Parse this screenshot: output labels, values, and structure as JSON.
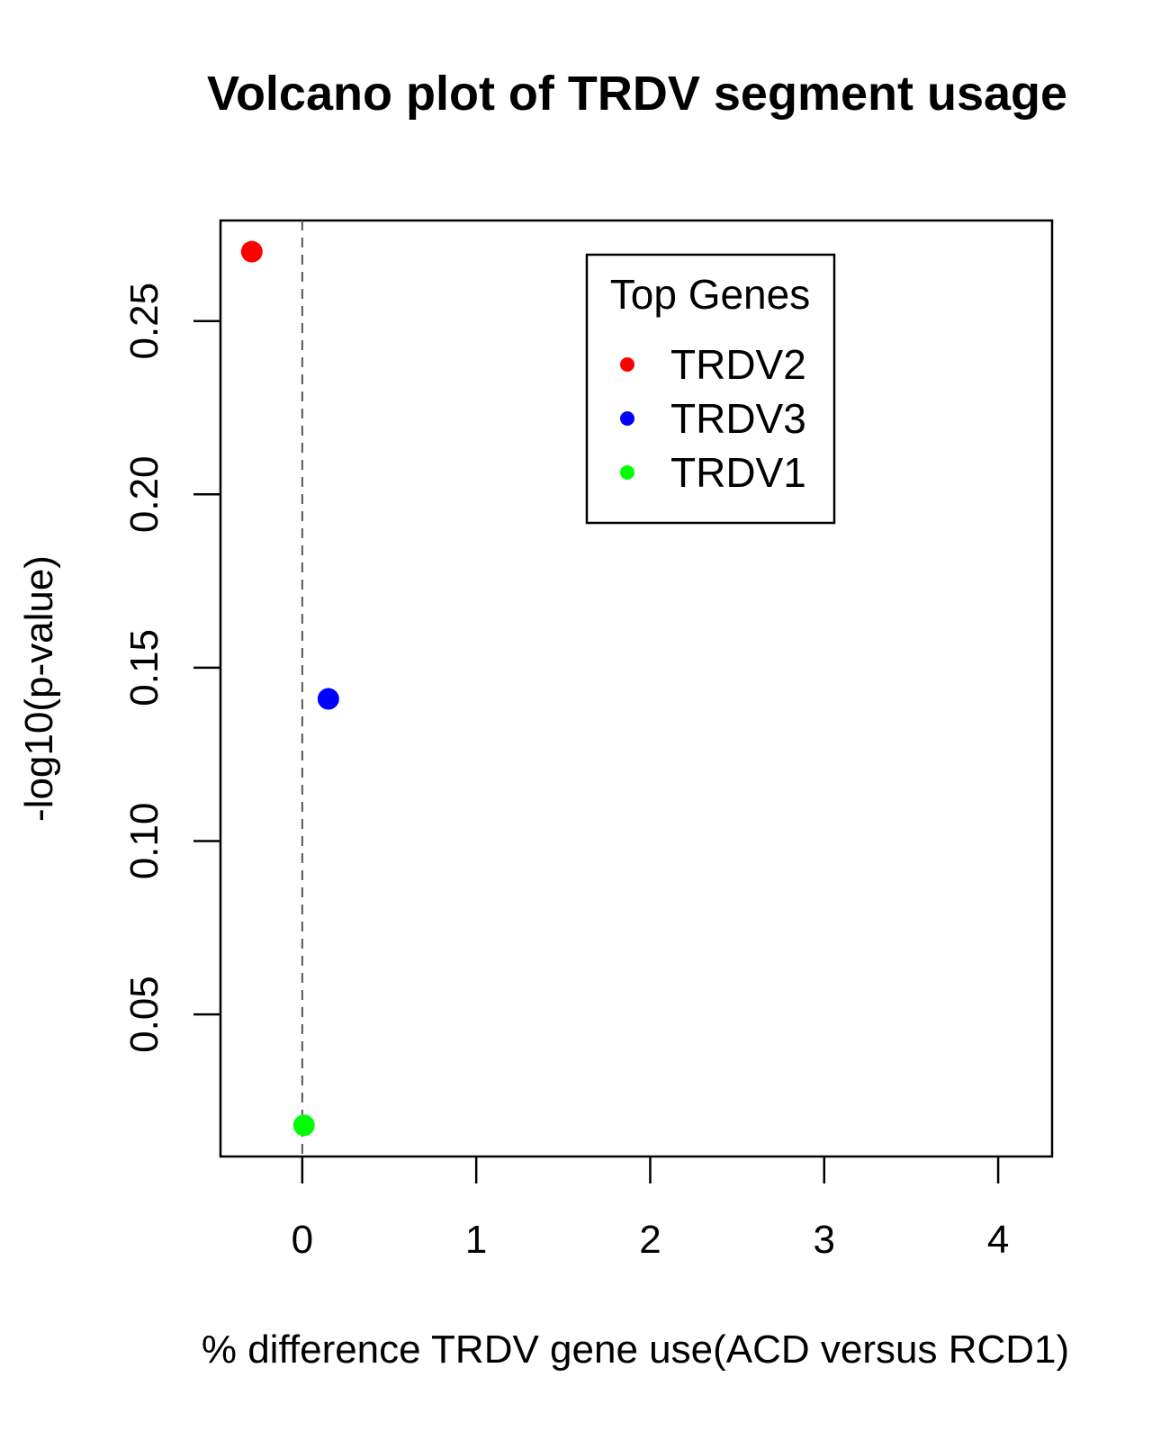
{
  "chart_data": {
    "type": "scatter",
    "title": "Volcano plot of TRDV segment usage",
    "xlabel": "% difference TRDV gene use(ACD versus RCD1)",
    "ylabel": "-log10(p-value)",
    "xlim": [
      -0.47,
      4.31
    ],
    "ylim": [
      0.009,
      0.279
    ],
    "x_ticks": [
      0,
      1,
      2,
      3,
      4
    ],
    "x_tick_labels": [
      "0",
      "1",
      "2",
      "3",
      "4"
    ],
    "y_ticks": [
      0.05,
      0.1,
      0.15,
      0.2,
      0.25
    ],
    "y_tick_labels": [
      "0.05",
      "0.10",
      "0.15",
      "0.20",
      "0.25"
    ],
    "reference_line": {
      "x": 0,
      "style": "dashed"
    },
    "grid": false,
    "legend": {
      "title": "Top Genes",
      "placement": "top-right",
      "entries": [
        {
          "label": "TRDV2",
          "color": "#ff0000"
        },
        {
          "label": "TRDV3",
          "color": "#0000ff"
        },
        {
          "label": "TRDV1",
          "color": "#00ff00"
        }
      ]
    },
    "points": [
      {
        "name": "TRDV2",
        "x": -0.29,
        "y": 0.27,
        "color": "#ff0000"
      },
      {
        "name": "TRDV3",
        "x": 0.15,
        "y": 0.141,
        "color": "#0000ff"
      },
      {
        "name": "TRDV1",
        "x": 0.01,
        "y": 0.018,
        "color": "#00ff00"
      }
    ]
  }
}
